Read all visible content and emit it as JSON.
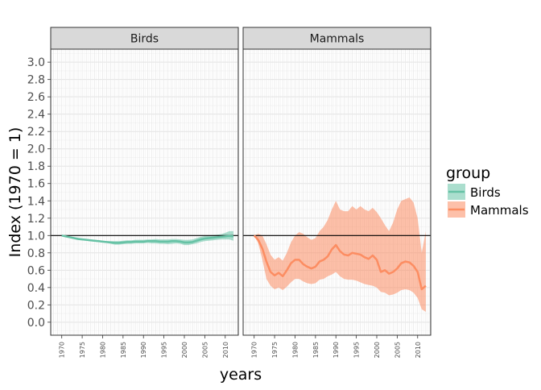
{
  "chart_data": {
    "type": "line",
    "facet_labels": [
      "Birds",
      "Mammals"
    ],
    "xlabel": "years",
    "ylabel": "Index (1970 = 1)",
    "ylim": [
      -0.15,
      3.15
    ],
    "xlim": [
      1967.3,
      2013.2
    ],
    "y_ticks": [
      "0.0",
      "0.2",
      "0.4",
      "0.6",
      "0.8",
      "1.0",
      "1.2",
      "1.4",
      "1.6",
      "1.8",
      "2.0",
      "2.2",
      "2.4",
      "2.6",
      "2.8",
      "3.0"
    ],
    "x_ticks": [
      "1970",
      "1975",
      "1980",
      "1985",
      "1990",
      "1995",
      "2000",
      "2005",
      "2010"
    ],
    "reference_line": 1.0,
    "legend": {
      "title": "group",
      "position": "right",
      "items": [
        {
          "label": "Birds",
          "color": "#66c2a5"
        },
        {
          "label": "Mammals",
          "color": "#fc8d62"
        }
      ]
    },
    "series": [
      {
        "name": "Birds",
        "color": "#66c2a5",
        "fill": "#66c2a5",
        "x": [
          1970,
          1971,
          1972,
          1973,
          1974,
          1975,
          1976,
          1977,
          1978,
          1979,
          1980,
          1981,
          1982,
          1983,
          1984,
          1985,
          1986,
          1987,
          1988,
          1989,
          1990,
          1991,
          1992,
          1993,
          1994,
          1995,
          1996,
          1997,
          1998,
          1999,
          2000,
          2001,
          2002,
          2003,
          2004,
          2005,
          2006,
          2007,
          2008,
          2009,
          2010,
          2011,
          2012
        ],
        "y": [
          1.0,
          0.99,
          0.98,
          0.97,
          0.96,
          0.955,
          0.95,
          0.945,
          0.94,
          0.935,
          0.93,
          0.925,
          0.92,
          0.915,
          0.915,
          0.92,
          0.925,
          0.925,
          0.93,
          0.93,
          0.93,
          0.935,
          0.935,
          0.935,
          0.93,
          0.93,
          0.93,
          0.935,
          0.935,
          0.93,
          0.92,
          0.92,
          0.925,
          0.94,
          0.955,
          0.965,
          0.97,
          0.975,
          0.98,
          0.985,
          0.99,
          0.995,
          0.99
        ],
        "lower": [
          1.0,
          0.985,
          0.97,
          0.96,
          0.95,
          0.945,
          0.94,
          0.935,
          0.93,
          0.925,
          0.92,
          0.915,
          0.905,
          0.895,
          0.895,
          0.9,
          0.905,
          0.905,
          0.91,
          0.91,
          0.91,
          0.915,
          0.91,
          0.91,
          0.905,
          0.905,
          0.9,
          0.905,
          0.91,
          0.905,
          0.89,
          0.89,
          0.9,
          0.91,
          0.925,
          0.935,
          0.94,
          0.945,
          0.95,
          0.955,
          0.955,
          0.955,
          0.94
        ],
        "upper": [
          1.0,
          0.995,
          0.99,
          0.98,
          0.975,
          0.965,
          0.96,
          0.955,
          0.95,
          0.945,
          0.94,
          0.935,
          0.935,
          0.935,
          0.935,
          0.94,
          0.945,
          0.945,
          0.95,
          0.95,
          0.95,
          0.955,
          0.955,
          0.96,
          0.955,
          0.955,
          0.955,
          0.96,
          0.96,
          0.955,
          0.95,
          0.95,
          0.955,
          0.97,
          0.985,
          0.995,
          1.0,
          1.005,
          1.01,
          1.015,
          1.03,
          1.05,
          1.05
        ]
      },
      {
        "name": "Mammals",
        "color": "#fc8d62",
        "fill": "#fc8d62",
        "x": [
          1970,
          1971,
          1972,
          1973,
          1974,
          1975,
          1976,
          1977,
          1978,
          1979,
          1980,
          1981,
          1982,
          1983,
          1984,
          1985,
          1986,
          1987,
          1988,
          1989,
          1990,
          1991,
          1992,
          1993,
          1994,
          1995,
          1996,
          1997,
          1998,
          1999,
          2000,
          2001,
          2002,
          2003,
          2004,
          2005,
          2006,
          2007,
          2008,
          2009,
          2010,
          2011,
          2012
        ],
        "y": [
          1.0,
          0.95,
          0.85,
          0.7,
          0.58,
          0.54,
          0.57,
          0.53,
          0.6,
          0.68,
          0.72,
          0.72,
          0.67,
          0.64,
          0.62,
          0.64,
          0.7,
          0.72,
          0.76,
          0.84,
          0.89,
          0.82,
          0.78,
          0.77,
          0.8,
          0.79,
          0.78,
          0.75,
          0.73,
          0.77,
          0.72,
          0.58,
          0.6,
          0.56,
          0.58,
          0.62,
          0.68,
          0.7,
          0.69,
          0.65,
          0.58,
          0.38,
          0.42
        ],
        "lower": [
          1.0,
          0.91,
          0.72,
          0.5,
          0.42,
          0.38,
          0.4,
          0.37,
          0.41,
          0.46,
          0.5,
          0.5,
          0.47,
          0.45,
          0.44,
          0.45,
          0.49,
          0.5,
          0.53,
          0.55,
          0.58,
          0.53,
          0.5,
          0.49,
          0.49,
          0.48,
          0.46,
          0.44,
          0.43,
          0.42,
          0.4,
          0.35,
          0.34,
          0.31,
          0.32,
          0.34,
          0.37,
          0.38,
          0.37,
          0.34,
          0.28,
          0.15,
          0.12
        ],
        "upper": [
          1.0,
          1.02,
          1.0,
          0.9,
          0.78,
          0.72,
          0.75,
          0.71,
          0.8,
          0.92,
          1.0,
          1.04,
          1.02,
          0.98,
          0.95,
          0.97,
          1.05,
          1.1,
          1.18,
          1.3,
          1.4,
          1.3,
          1.28,
          1.28,
          1.34,
          1.3,
          1.34,
          1.3,
          1.28,
          1.32,
          1.27,
          1.2,
          1.12,
          1.05,
          1.15,
          1.3,
          1.4,
          1.42,
          1.44,
          1.38,
          1.2,
          0.8,
          1.05
        ]
      }
    ]
  }
}
